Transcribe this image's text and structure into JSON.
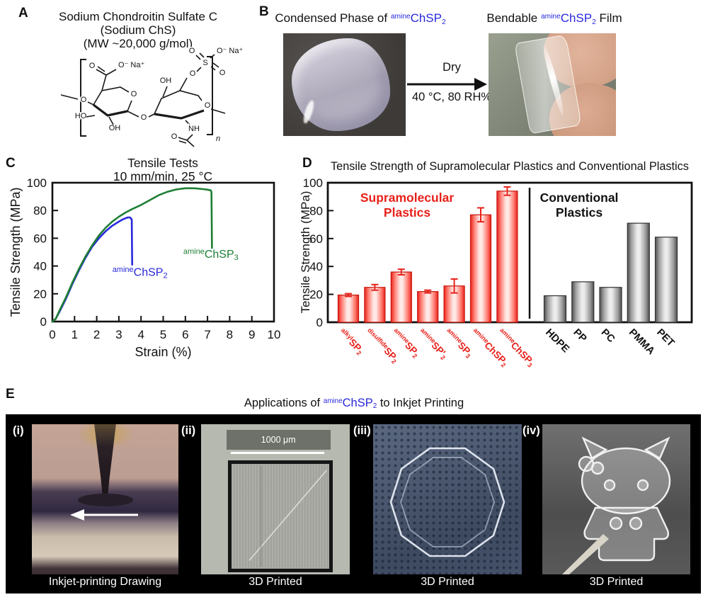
{
  "colors": {
    "blue": "#2828dc",
    "green": "#1e7e34",
    "red": "#e8211a",
    "gray_bar": "#4f4f4f",
    "black": "#111111"
  },
  "panel_a": {
    "letter": "A",
    "title_lines": [
      "Sodium Chondroitin Sulfate C",
      "(Sodium ChS)",
      "(MW ~20,000 g/mol)"
    ],
    "atoms": {
      "carbonyl_o": "O",
      "carboxylate": "O⁻ Na⁺",
      "ho": "HO",
      "oh_bottom": "OH",
      "chain_o": "O",
      "ring1_o": "O",
      "glyco_o": "O",
      "oh_top": "OH",
      "ring2_o": "O",
      "ester_o": "O",
      "s": "S",
      "sulf_o1": "O",
      "sulf_o2": "O",
      "sulfate": "O⁻ Na⁺",
      "nh": "NH",
      "amide_o": "O",
      "repeat_n": "n"
    }
  },
  "panel_b": {
    "letter": "B",
    "left_title": {
      "parts": [
        {
          "t": "Condensed Phase of "
        },
        {
          "s": "sup",
          "t": "amine",
          "c": "#2828dc"
        },
        {
          "t": "ChSP",
          "c": "#2828dc"
        },
        {
          "s": "sub",
          "t": "2",
          "c": "#2828dc"
        }
      ]
    },
    "right_title": {
      "parts": [
        {
          "t": "Bendable "
        },
        {
          "s": "sup",
          "t": "amine",
          "c": "#2828dc"
        },
        {
          "t": "ChSP",
          "c": "#2828dc"
        },
        {
          "s": "sub",
          "t": "2",
          "c": "#2828dc"
        },
        {
          "t": " Film"
        }
      ]
    },
    "arrow_top": "Dry",
    "arrow_bottom": "40 °C, 80 RH%"
  },
  "panel_c": {
    "letter": "C"
  },
  "panel_d": {
    "letter": "D",
    "title": "Tensile Strength of Supramolecular Plastics and Conventional Plastics"
  },
  "panel_e": {
    "letter": "E",
    "title": {
      "parts": [
        {
          "t": "Applications of "
        },
        {
          "s": "sup",
          "t": "amine",
          "c": "#2828dc"
        },
        {
          "t": "ChSP",
          "c": "#2828dc"
        },
        {
          "s": "sub",
          "t": "2",
          "c": "#2828dc"
        },
        {
          "t": " to Inkjet Printing"
        }
      ]
    },
    "images": [
      {
        "tag": "(i)",
        "caption": "Inkjet-printing Drawing"
      },
      {
        "tag": "(ii)",
        "caption": "3D Printed",
        "scalebar": "1000 μm"
      },
      {
        "tag": "(iii)",
        "caption": "3D Printed"
      },
      {
        "tag": "(iv)",
        "caption": "3D Printed"
      }
    ]
  },
  "chart_data": [
    {
      "type": "line",
      "title": "Tensile Tests",
      "subtitle": "10 mm/min, 25 °C",
      "xlabel": "Strain (%)",
      "ylabel": "Tensile Strength (MPa)",
      "xlim": [
        0,
        10
      ],
      "ylim": [
        0,
        100
      ],
      "xticks": [
        0,
        1,
        2,
        3,
        4,
        5,
        6,
        7,
        8,
        9,
        10
      ],
      "yticks": [
        0,
        20,
        40,
        60,
        80,
        100
      ],
      "grid": false,
      "legend": "inline-labels",
      "series": [
        {
          "name": "amineChSP2",
          "color": "#2828dc",
          "label_parts": [
            {
              "s": "sup",
              "t": "amine"
            },
            {
              "t": "ChSP"
            },
            {
              "s": "sub",
              "t": "2"
            }
          ],
          "label_at": [
            3.95,
            33
          ],
          "points": [
            [
              0,
              0
            ],
            [
              0.15,
              2
            ],
            [
              0.35,
              8
            ],
            [
              0.6,
              16
            ],
            [
              0.9,
              27
            ],
            [
              1.2,
              37
            ],
            [
              1.5,
              46
            ],
            [
              1.8,
              54
            ],
            [
              2.1,
              60
            ],
            [
              2.4,
              65
            ],
            [
              2.7,
              69
            ],
            [
              3.0,
              72
            ],
            [
              3.2,
              73.8
            ],
            [
              3.4,
              75
            ],
            [
              3.5,
              75
            ],
            [
              3.58,
              73.5
            ],
            [
              3.6,
              41
            ]
          ]
        },
        {
          "name": "amineChSP3",
          "color": "#1e7e34",
          "label_parts": [
            {
              "s": "sup",
              "t": "amine"
            },
            {
              "t": "ChSP"
            },
            {
              "s": "sub",
              "t": "3"
            }
          ],
          "label_at": [
            7.15,
            46
          ],
          "points": [
            [
              0,
              0
            ],
            [
              0.15,
              2
            ],
            [
              0.35,
              9
            ],
            [
              0.6,
              17
            ],
            [
              0.9,
              28
            ],
            [
              1.2,
              38
            ],
            [
              1.5,
              47
            ],
            [
              1.8,
              55
            ],
            [
              2.1,
              62
            ],
            [
              2.4,
              67.5
            ],
            [
              2.7,
              72
            ],
            [
              3.0,
              75.5
            ],
            [
              3.3,
              78.5
            ],
            [
              3.6,
              81
            ],
            [
              4.0,
              84
            ],
            [
              4.4,
              87.5
            ],
            [
              4.8,
              91
            ],
            [
              5.2,
              93.5
            ],
            [
              5.6,
              95.2
            ],
            [
              6.0,
              96
            ],
            [
              6.4,
              96
            ],
            [
              6.8,
              95.4
            ],
            [
              7.0,
              95
            ],
            [
              7.15,
              94.5
            ],
            [
              7.18,
              93
            ],
            [
              7.2,
              53
            ]
          ]
        }
      ]
    },
    {
      "type": "bar",
      "title": "Tensile Strength of Supramolecular Plastics and Conventional Plastics",
      "ylabel": "Tensile Strength (MPa)",
      "ylim": [
        0,
        100
      ],
      "yticks": [
        0,
        20,
        40,
        60,
        80,
        100
      ],
      "divider_between_groups": true,
      "groups": [
        {
          "name": "Supramolecular Plastics",
          "label_color": "#e8211a",
          "bar_gradient": [
            "#e8211a",
            "#ff7d72",
            "#ffe9e6"
          ],
          "bar_stroke": "#c8150b",
          "bars": [
            {
              "label_parts": [
                {
                  "s": "sup",
                  "t": "alkyl"
                },
                {
                  "t": "SP"
                },
                {
                  "s": "sub",
                  "t": "2"
                }
              ],
              "value": 19.5,
              "err": 1
            },
            {
              "label_parts": [
                {
                  "s": "sup",
                  "t": "disulfide"
                },
                {
                  "t": "SP"
                },
                {
                  "s": "sub",
                  "t": "2"
                }
              ],
              "value": 25,
              "err": 2
            },
            {
              "label_parts": [
                {
                  "s": "sup",
                  "t": "amine"
                },
                {
                  "t": "SP"
                },
                {
                  "s": "sub",
                  "t": "2"
                }
              ],
              "value": 36,
              "err": 2
            },
            {
              "label_parts": [
                {
                  "s": "sup",
                  "t": "amine"
                },
                {
                  "t": "SP'"
                },
                {
                  "s": "sub",
                  "t": "2"
                }
              ],
              "value": 22,
              "err": 1
            },
            {
              "label_parts": [
                {
                  "s": "sup",
                  "t": "amine"
                },
                {
                  "t": "SP"
                },
                {
                  "s": "sub",
                  "t": "3"
                }
              ],
              "value": 26,
              "err": 5
            },
            {
              "label_parts": [
                {
                  "s": "sup",
                  "t": "amine"
                },
                {
                  "t": "ChSP"
                },
                {
                  "s": "sub",
                  "t": "2"
                }
              ],
              "value": 77,
              "err": 5
            },
            {
              "label_parts": [
                {
                  "s": "sup",
                  "t": "amine"
                },
                {
                  "t": "ChSP"
                },
                {
                  "s": "sub",
                  "t": "3"
                }
              ],
              "value": 94,
              "err": 3
            }
          ]
        },
        {
          "name": "Conventional Plastics",
          "label_color": "#111111",
          "bar_gradient": [
            "#4f4f4f",
            "#9f9f9f",
            "#ececec"
          ],
          "bar_stroke": "#333333",
          "bars": [
            {
              "label_parts": [
                {
                  "t": "HDPE"
                }
              ],
              "value": 19,
              "err": null
            },
            {
              "label_parts": [
                {
                  "t": "PP"
                }
              ],
              "value": 29,
              "err": null
            },
            {
              "label_parts": [
                {
                  "t": "PC"
                }
              ],
              "value": 25,
              "err": null
            },
            {
              "label_parts": [
                {
                  "t": "PMMA"
                }
              ],
              "value": 71,
              "err": null
            },
            {
              "label_parts": [
                {
                  "t": "PET"
                }
              ],
              "value": 61,
              "err": null
            }
          ]
        }
      ]
    }
  ]
}
